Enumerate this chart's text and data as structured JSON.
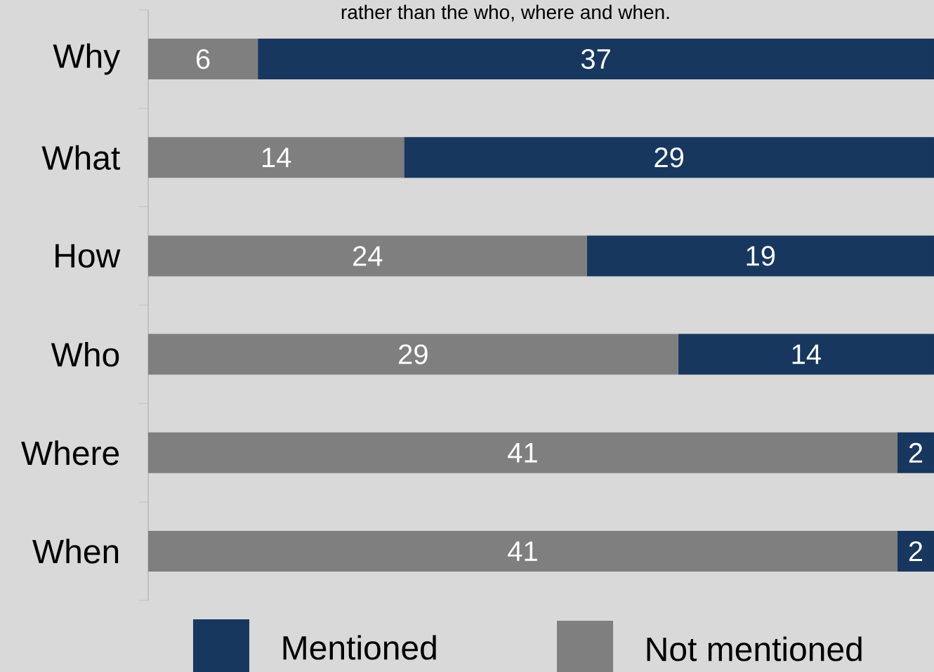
{
  "chart_data": {
    "type": "bar",
    "orientation": "horizontal",
    "stacked": true,
    "title": "rather than the who, where and when.",
    "categories": [
      "Why",
      "What",
      "How",
      "Who",
      "Where",
      "When"
    ],
    "series": [
      {
        "name": "Not mentioned",
        "color": "#7f7f7f",
        "values": [
          6,
          14,
          24,
          29,
          41,
          41
        ]
      },
      {
        "name": "Mentioned",
        "color": "#17375e",
        "values": [
          37,
          29,
          19,
          14,
          2,
          2
        ]
      }
    ],
    "data_labels": true,
    "legend": "bottom"
  }
}
